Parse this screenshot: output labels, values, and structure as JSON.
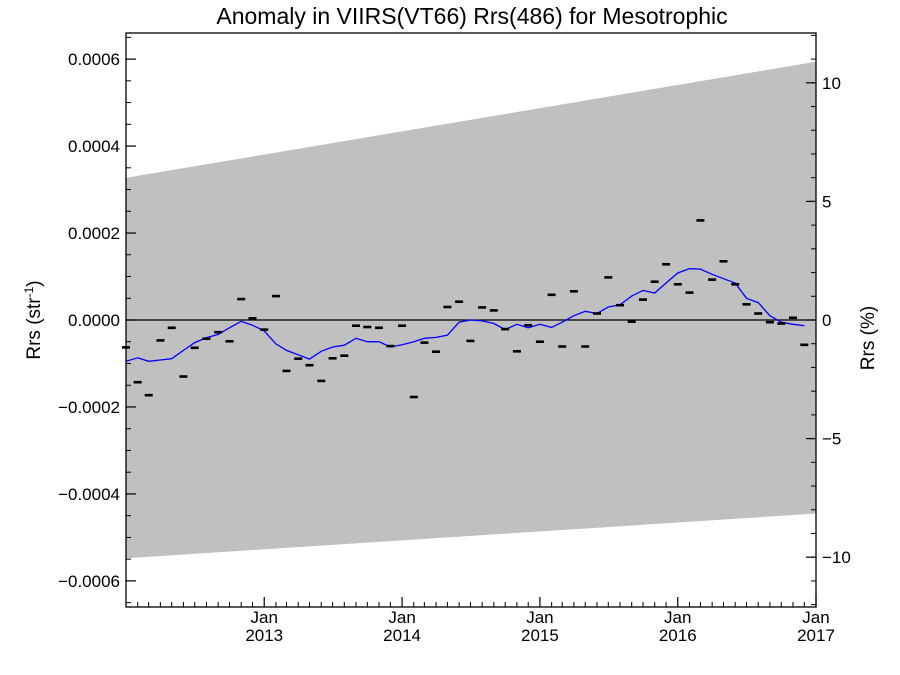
{
  "chart_data": {
    "type": "line",
    "title": "Anomaly in VIIRS(VT66) Rrs(486) for Mesotrophic",
    "ylabel": "Rrs (str",
    "ylabel_sup": "-1",
    "ylabel_close": ")",
    "y2label": "Rrs (%)",
    "xlim": [
      "2012-01-01",
      "2017-01-01"
    ],
    "ylim": [
      -0.00066,
      0.00066
    ],
    "y2lim": [
      -12.1,
      12.1
    ],
    "y_ticks": [
      {
        "value": 0.0006,
        "label": "0.0006"
      },
      {
        "value": 0.0004,
        "label": "0.0004"
      },
      {
        "value": 0.0002,
        "label": "0.0002"
      },
      {
        "value": 0.0,
        "label": "0.0000"
      },
      {
        "value": -0.0002,
        "label": "−0.0002"
      },
      {
        "value": -0.0004,
        "label": "−0.0004"
      },
      {
        "value": -0.0006,
        "label": "−0.0006"
      }
    ],
    "y2_ticks": [
      {
        "value": 10,
        "label": "10"
      },
      {
        "value": 5,
        "label": "5"
      },
      {
        "value": 0,
        "label": "0"
      },
      {
        "value": -5,
        "label": "−5"
      },
      {
        "value": -10,
        "label": "−10"
      }
    ],
    "x_ticks": [
      {
        "value": "2013-01-01",
        "month": "Jan",
        "year": "2013"
      },
      {
        "value": "2014-01-01",
        "month": "Jan",
        "year": "2014"
      },
      {
        "value": "2015-01-01",
        "month": "Jan",
        "year": "2015"
      },
      {
        "value": "2016-01-01",
        "month": "Jan",
        "year": "2016"
      },
      {
        "value": "2017-01-01",
        "month": "Jan",
        "year": "2017"
      }
    ],
    "envelope": {
      "x": [
        "2012-01-01",
        "2017-01-01"
      ],
      "upper": [
        0.000327,
        0.000594
      ],
      "lower": [
        -0.000548,
        -0.000445
      ],
      "color": "#c0c0c0"
    },
    "zero_line": 0,
    "series": [
      {
        "type": "scatter",
        "marker": "dash",
        "color": "#000000",
        "points": [
          {
            "x": "2012-01-01",
            "y": -6.3e-05
          },
          {
            "x": "2012-02-01",
            "y": -0.000143
          },
          {
            "x": "2012-03-01",
            "y": -0.000173
          },
          {
            "x": "2012-04-01",
            "y": -4.7e-05
          },
          {
            "x": "2012-05-01",
            "y": -1.8e-05
          },
          {
            "x": "2012-06-01",
            "y": -0.00013
          },
          {
            "x": "2012-07-01",
            "y": -6.4e-05
          },
          {
            "x": "2012-08-01",
            "y": -4.3e-05
          },
          {
            "x": "2012-09-01",
            "y": -2.8e-05
          },
          {
            "x": "2012-10-01",
            "y": -4.9e-05
          },
          {
            "x": "2012-11-01",
            "y": 4.8e-05
          },
          {
            "x": "2012-12-01",
            "y": 4e-06
          },
          {
            "x": "2013-01-01",
            "y": -2.2e-05
          },
          {
            "x": "2013-02-01",
            "y": 5.5e-05
          },
          {
            "x": "2013-03-01",
            "y": -0.000117
          },
          {
            "x": "2013-04-01",
            "y": -8.9e-05
          },
          {
            "x": "2013-05-01",
            "y": -0.000104
          },
          {
            "x": "2013-06-01",
            "y": -0.00014
          },
          {
            "x": "2013-07-01",
            "y": -8.8e-05
          },
          {
            "x": "2013-08-01",
            "y": -8.2e-05
          },
          {
            "x": "2013-09-01",
            "y": -1.3e-05
          },
          {
            "x": "2013-10-01",
            "y": -1.6e-05
          },
          {
            "x": "2013-11-01",
            "y": -1.8e-05
          },
          {
            "x": "2013-12-01",
            "y": -6e-05
          },
          {
            "x": "2014-01-01",
            "y": -1.3e-05
          },
          {
            "x": "2014-02-01",
            "y": -0.000177
          },
          {
            "x": "2014-03-01",
            "y": -5.2e-05
          },
          {
            "x": "2014-04-01",
            "y": -7.3e-05
          },
          {
            "x": "2014-05-01",
            "y": 3e-05
          },
          {
            "x": "2014-06-01",
            "y": 4.2e-05
          },
          {
            "x": "2014-07-01",
            "y": -4.8e-05
          },
          {
            "x": "2014-08-01",
            "y": 2.9e-05
          },
          {
            "x": "2014-09-01",
            "y": 2.2e-05
          },
          {
            "x": "2014-10-01",
            "y": -2.1e-05
          },
          {
            "x": "2014-11-01",
            "y": -7.2e-05
          },
          {
            "x": "2014-12-01",
            "y": -1.2e-05
          },
          {
            "x": "2015-01-01",
            "y": -5e-05
          },
          {
            "x": "2015-02-01",
            "y": 5.8e-05
          },
          {
            "x": "2015-03-01",
            "y": -6.1e-05
          },
          {
            "x": "2015-04-01",
            "y": 6.6e-05
          },
          {
            "x": "2015-05-01",
            "y": -6.1e-05
          },
          {
            "x": "2015-06-01",
            "y": 1.5e-05
          },
          {
            "x": "2015-07-01",
            "y": 9.8e-05
          },
          {
            "x": "2015-08-01",
            "y": 3.4e-05
          },
          {
            "x": "2015-09-01",
            "y": -4e-06
          },
          {
            "x": "2015-10-01",
            "y": 4.7e-05
          },
          {
            "x": "2015-11-01",
            "y": 8.8e-05
          },
          {
            "x": "2015-12-01",
            "y": 0.000128
          },
          {
            "x": "2016-01-01",
            "y": 8.2e-05
          },
          {
            "x": "2016-02-01",
            "y": 6.3e-05
          },
          {
            "x": "2016-03-01",
            "y": 0.000229
          },
          {
            "x": "2016-04-01",
            "y": 9.3e-05
          },
          {
            "x": "2016-05-01",
            "y": 0.000135
          },
          {
            "x": "2016-06-01",
            "y": 8.2e-05
          },
          {
            "x": "2016-07-01",
            "y": 3.6e-05
          },
          {
            "x": "2016-08-01",
            "y": 1.5e-05
          },
          {
            "x": "2016-09-01",
            "y": -5e-06
          },
          {
            "x": "2016-10-01",
            "y": -8e-06
          },
          {
            "x": "2016-11-01",
            "y": 5e-06
          },
          {
            "x": "2016-12-01",
            "y": -5.7e-05
          }
        ]
      },
      {
        "type": "line",
        "color": "#0000ff",
        "points": [
          {
            "x": "2012-01-01",
            "y": -9.5e-05
          },
          {
            "x": "2012-02-01",
            "y": -8.7e-05
          },
          {
            "x": "2012-03-01",
            "y": -9.5e-05
          },
          {
            "x": "2012-04-01",
            "y": -9.2e-05
          },
          {
            "x": "2012-05-01",
            "y": -8.9e-05
          },
          {
            "x": "2012-06-01",
            "y": -7e-05
          },
          {
            "x": "2012-07-01",
            "y": -5.2e-05
          },
          {
            "x": "2012-08-01",
            "y": -4.1e-05
          },
          {
            "x": "2012-09-01",
            "y": -3.3e-05
          },
          {
            "x": "2012-10-01",
            "y": -1.8e-05
          },
          {
            "x": "2012-11-01",
            "y": -3e-06
          },
          {
            "x": "2012-12-01",
            "y": -1.2e-05
          },
          {
            "x": "2013-01-01",
            "y": -2.5e-05
          },
          {
            "x": "2013-02-01",
            "y": -5.5e-05
          },
          {
            "x": "2013-03-01",
            "y": -7e-05
          },
          {
            "x": "2013-04-01",
            "y": -8e-05
          },
          {
            "x": "2013-05-01",
            "y": -9e-05
          },
          {
            "x": "2013-06-01",
            "y": -7.2e-05
          },
          {
            "x": "2013-07-01",
            "y": -6.2e-05
          },
          {
            "x": "2013-08-01",
            "y": -5.8e-05
          },
          {
            "x": "2013-09-01",
            "y": -4.2e-05
          },
          {
            "x": "2013-10-01",
            "y": -5e-05
          },
          {
            "x": "2013-11-01",
            "y": -5e-05
          },
          {
            "x": "2013-12-01",
            "y": -6.2e-05
          },
          {
            "x": "2014-01-01",
            "y": -5.7e-05
          },
          {
            "x": "2014-02-01",
            "y": -5e-05
          },
          {
            "x": "2014-03-01",
            "y": -4.2e-05
          },
          {
            "x": "2014-04-01",
            "y": -4e-05
          },
          {
            "x": "2014-05-01",
            "y": -3.5e-05
          },
          {
            "x": "2014-06-01",
            "y": -5e-06
          },
          {
            "x": "2014-07-01",
            "y": 0.0
          },
          {
            "x": "2014-08-01",
            "y": -2e-06
          },
          {
            "x": "2014-09-01",
            "y": -8e-06
          },
          {
            "x": "2014-10-01",
            "y": -2.2e-05
          },
          {
            "x": "2014-11-01",
            "y": -1e-05
          },
          {
            "x": "2014-12-01",
            "y": -1.8e-05
          },
          {
            "x": "2015-01-01",
            "y": -1e-05
          },
          {
            "x": "2015-02-01",
            "y": -1.7e-05
          },
          {
            "x": "2015-03-01",
            "y": -5e-06
          },
          {
            "x": "2015-04-01",
            "y": 1e-05
          },
          {
            "x": "2015-05-01",
            "y": 2e-05
          },
          {
            "x": "2015-06-01",
            "y": 1.5e-05
          },
          {
            "x": "2015-07-01",
            "y": 3e-05
          },
          {
            "x": "2015-08-01",
            "y": 3.5e-05
          },
          {
            "x": "2015-09-01",
            "y": 5.5e-05
          },
          {
            "x": "2015-10-01",
            "y": 6.8e-05
          },
          {
            "x": "2015-11-01",
            "y": 6.2e-05
          },
          {
            "x": "2015-12-01",
            "y": 8.5e-05
          },
          {
            "x": "2016-01-01",
            "y": 0.000108
          },
          {
            "x": "2016-02-01",
            "y": 0.000118
          },
          {
            "x": "2016-03-01",
            "y": 0.000117
          },
          {
            "x": "2016-04-01",
            "y": 0.000105
          },
          {
            "x": "2016-05-01",
            "y": 9.5e-05
          },
          {
            "x": "2016-06-01",
            "y": 8.5e-05
          },
          {
            "x": "2016-07-01",
            "y": 5e-05
          },
          {
            "x": "2016-08-01",
            "y": 4e-05
          },
          {
            "x": "2016-09-01",
            "y": 1e-05
          },
          {
            "x": "2016-10-01",
            "y": -5e-06
          },
          {
            "x": "2016-11-01",
            "y": -1e-05
          },
          {
            "x": "2016-12-01",
            "y": -1.3e-05
          }
        ]
      }
    ]
  }
}
